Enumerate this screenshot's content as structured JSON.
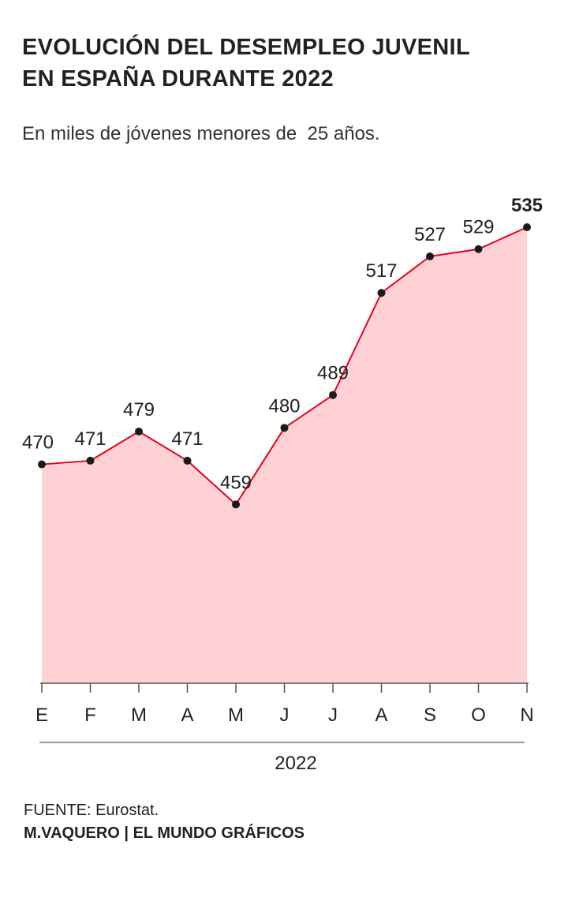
{
  "chart_data": {
    "type": "area",
    "title": "EVOLUCIÓN DEL DESEMPLEO JUVENIL\nEN ESPAÑA DURANTE 2022",
    "subtitle": "En miles de jóvenes menores de  25 años.",
    "categories": [
      "E",
      "F",
      "M",
      "A",
      "M",
      "J",
      "J",
      "A",
      "S",
      "O",
      "N"
    ],
    "values": [
      470,
      471,
      479,
      471,
      459,
      480,
      489,
      517,
      527,
      529,
      535
    ],
    "xlabel": "2022",
    "color": "#e8001c",
    "fill_color": "#ffd0d4",
    "ylim": [
      410,
      535
    ]
  },
  "footer": {
    "source": "FUENTE: Eurostat.",
    "credit": "M.VAQUERO | EL MUNDO GRÁFICOS"
  }
}
